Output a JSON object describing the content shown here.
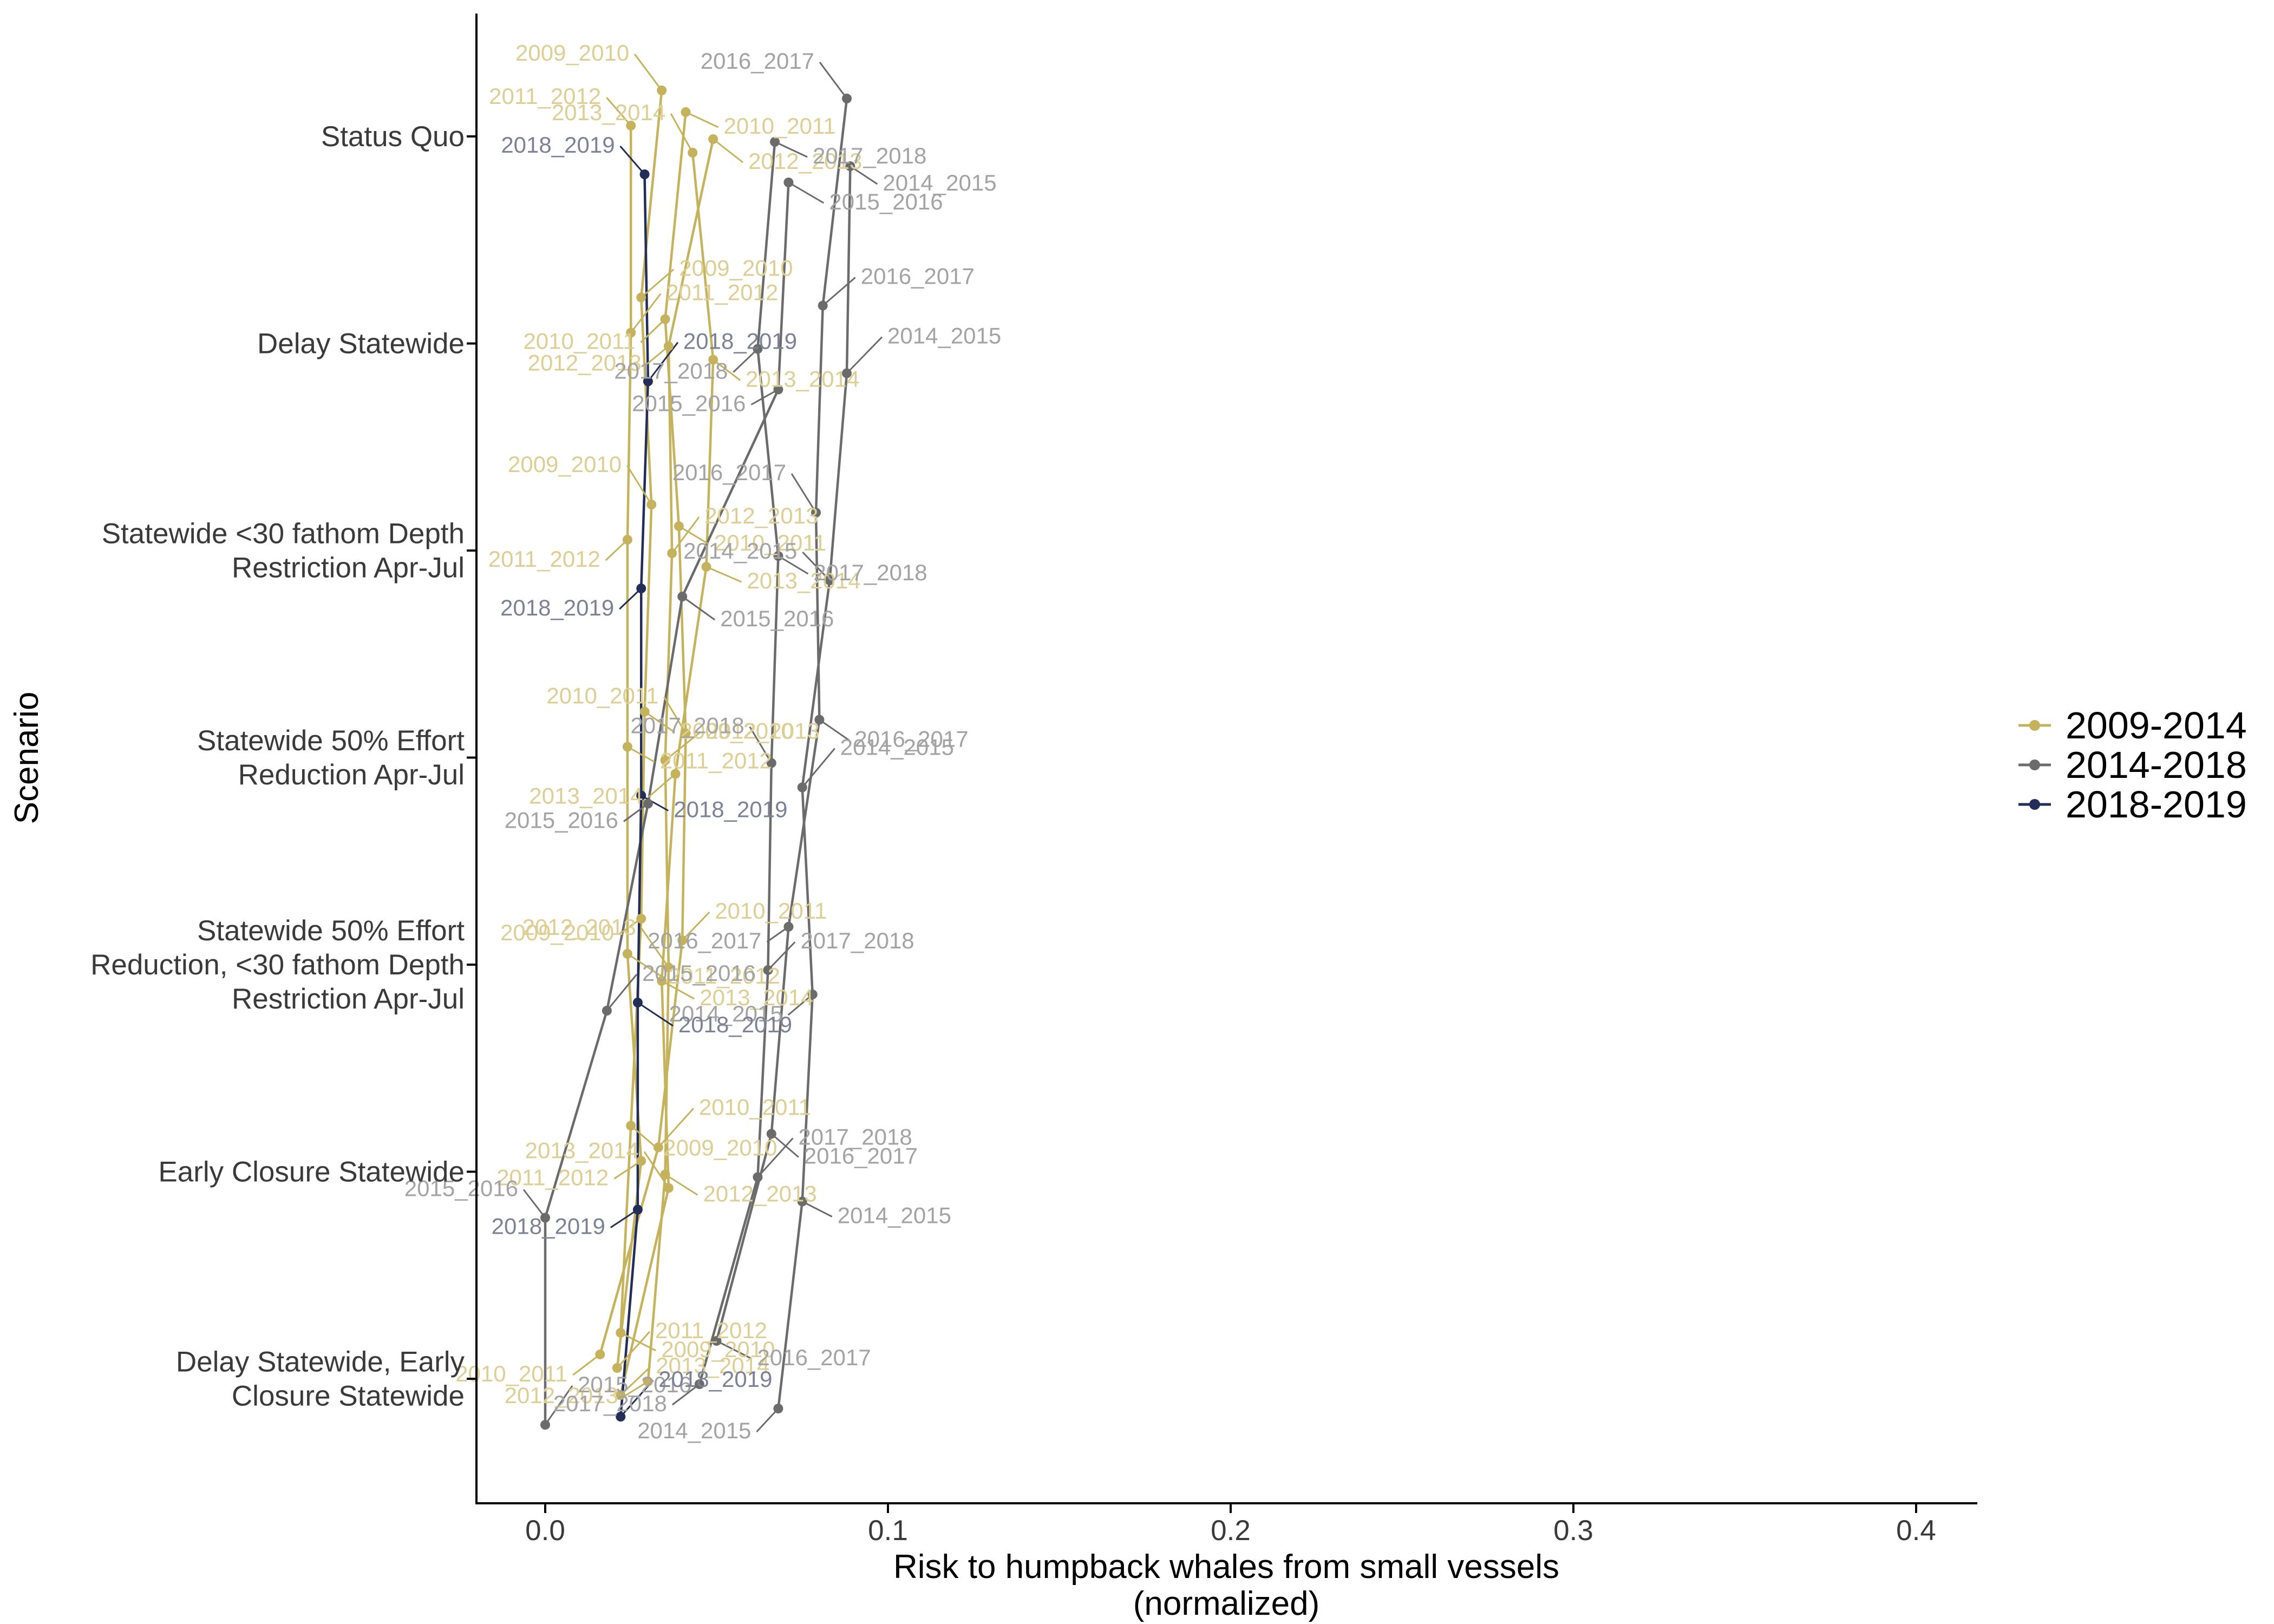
{
  "chart_data": {
    "type": "scatter",
    "xlabel": "Risk to humpback whales from small vessels\n(normalized)",
    "ylabel": "Scenario",
    "xlim": [
      -0.02,
      0.42
    ],
    "x_ticks": [
      0.0,
      0.1,
      0.2,
      0.3,
      0.4
    ],
    "x_tick_labels": [
      "0.0",
      "0.1",
      "0.2",
      "0.3",
      "0.4"
    ],
    "grid": false,
    "legend_position": "right",
    "scenarios": [
      "Status Quo",
      "Delay Statewide",
      "Statewide <30 fathom Depth\nRestriction Apr-Jul",
      "Statewide 50% Effort\nReduction Apr-Jul",
      "Statewide 50% Effort\nReduction, <30 fathom Depth\nRestriction Apr-Jul",
      "Early Closure Statewide",
      "Delay Statewide, Early\nClosure Statewide"
    ],
    "series": [
      {
        "name": "2009-2014",
        "color": "#c4b35c",
        "label_color": "#ddce93"
      },
      {
        "name": "2014-2018",
        "color": "#6b6b6b",
        "label_color": "#a3a3a3"
      },
      {
        "name": "2018-2019",
        "color": "#222e57",
        "label_color": "#7c8296"
      }
    ],
    "seasons": [
      {
        "name": "2009_2010",
        "series": "2009-2014",
        "values": [
          0.034,
          0.028,
          0.031,
          0.029,
          0.028,
          0.025,
          0.022
        ]
      },
      {
        "name": "2010_2011",
        "series": "2009-2014",
        "values": [
          0.041,
          0.035,
          0.039,
          0.041,
          0.04,
          0.033,
          0.016
        ]
      },
      {
        "name": "2011_2012",
        "series": "2009-2014",
        "values": [
          0.025,
          0.025,
          0.024,
          0.024,
          0.024,
          0.028,
          0.021
        ]
      },
      {
        "name": "2012_2013",
        "series": "2009-2014",
        "values": [
          0.049,
          0.036,
          0.037,
          0.035,
          0.036,
          0.035,
          0.03
        ]
      },
      {
        "name": "2013_2014",
        "series": "2009-2014",
        "values": [
          0.043,
          0.049,
          0.047,
          0.038,
          0.034,
          0.036,
          0.022
        ]
      },
      {
        "name": "2014_2015",
        "series": "2014-2018",
        "values": [
          0.089,
          0.088,
          0.083,
          0.075,
          0.078,
          0.075,
          0.068
        ]
      },
      {
        "name": "2015_2016",
        "series": "2014-2018",
        "values": [
          0.071,
          0.068,
          0.04,
          0.03,
          0.018,
          0.0,
          0.0
        ]
      },
      {
        "name": "2016_2017",
        "series": "2014-2018",
        "values": [
          0.088,
          0.081,
          0.079,
          0.08,
          0.071,
          0.066,
          0.05
        ]
      },
      {
        "name": "2017_2018",
        "series": "2014-2018",
        "values": [
          0.067,
          0.062,
          0.068,
          0.066,
          0.065,
          0.062,
          0.045
        ]
      },
      {
        "name": "2018_2019",
        "series": "2018-2019",
        "values": [
          0.029,
          0.03,
          0.028,
          0.028,
          0.027,
          0.027,
          0.022
        ]
      }
    ]
  }
}
